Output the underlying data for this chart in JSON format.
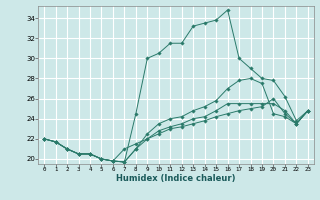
{
  "xlabel": "Humidex (Indice chaleur)",
  "bg_color": "#cde8e8",
  "grid_color": "#ffffff",
  "line_color": "#2a7a6a",
  "xlim": [
    -0.5,
    23.5
  ],
  "ylim": [
    19.5,
    35.2
  ],
  "xticks": [
    0,
    1,
    2,
    3,
    4,
    5,
    6,
    7,
    8,
    9,
    10,
    11,
    12,
    13,
    14,
    15,
    16,
    17,
    18,
    19,
    20,
    21,
    22,
    23
  ],
  "yticks": [
    20,
    22,
    24,
    26,
    28,
    30,
    32,
    34
  ],
  "lines": [
    [
      0,
      22,
      1,
      21.7,
      2,
      21.0,
      3,
      20.5,
      4,
      20.5,
      5,
      20.0,
      6,
      19.8,
      7,
      19.7,
      8,
      24.5,
      9,
      30.0,
      10,
      30.5,
      11,
      31.5,
      12,
      31.5,
      13,
      33.2,
      14,
      33.5,
      15,
      33.8,
      16,
      34.8,
      17,
      30.0,
      18,
      29.0,
      19,
      28.0,
      20,
      27.8,
      21,
      26.2,
      22,
      23.8,
      23,
      24.8
    ],
    [
      0,
      22,
      1,
      21.7,
      2,
      21.0,
      3,
      20.5,
      4,
      20.5,
      5,
      20.0,
      6,
      19.8,
      7,
      19.7,
      8,
      21.0,
      9,
      22.5,
      10,
      23.5,
      11,
      24.0,
      12,
      24.2,
      13,
      24.8,
      14,
      25.2,
      15,
      25.8,
      16,
      27.0,
      17,
      27.8,
      18,
      28.0,
      19,
      27.5,
      20,
      24.5,
      21,
      24.2,
      22,
      23.5,
      23,
      24.8
    ],
    [
      0,
      22,
      1,
      21.7,
      2,
      21.0,
      3,
      20.5,
      4,
      20.5,
      5,
      20.0,
      6,
      19.8,
      7,
      19.7,
      8,
      21.0,
      9,
      22.0,
      10,
      22.8,
      11,
      23.2,
      12,
      23.5,
      13,
      24.0,
      14,
      24.2,
      15,
      24.8,
      16,
      25.5,
      17,
      25.5,
      18,
      25.5,
      19,
      25.5,
      20,
      25.5,
      21,
      24.8,
      22,
      23.5,
      23,
      24.8
    ],
    [
      0,
      22,
      1,
      21.7,
      2,
      21.0,
      3,
      20.5,
      4,
      20.5,
      5,
      20.0,
      6,
      19.8,
      7,
      21.0,
      8,
      21.5,
      9,
      22.0,
      10,
      22.5,
      11,
      23.0,
      12,
      23.2,
      13,
      23.5,
      14,
      23.8,
      15,
      24.2,
      16,
      24.5,
      17,
      24.8,
      18,
      25.0,
      19,
      25.2,
      20,
      26.0,
      21,
      24.5,
      22,
      23.5,
      23,
      24.8
    ]
  ]
}
